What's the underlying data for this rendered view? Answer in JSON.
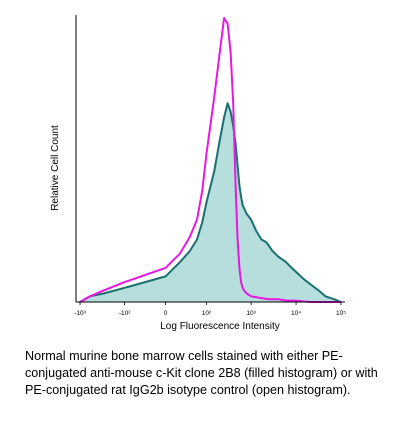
{
  "chart_data": {
    "type": "area",
    "xlabel": "Log Fluorescence Intensity",
    "ylabel": "Relative Cell Count",
    "x_scale": "biexponential",
    "xlim": [
      -1000,
      100000
    ],
    "ylim": [
      0,
      100
    ],
    "x_ticks": [
      {
        "value": -1000,
        "label": "-10³"
      },
      {
        "value": -100,
        "label": "-10²"
      },
      {
        "value": 0,
        "label": "0"
      },
      {
        "value": 100,
        "label": "10²"
      },
      {
        "value": 1000,
        "label": "10³"
      },
      {
        "value": 10000,
        "label": "10⁴"
      },
      {
        "value": 100000,
        "label": "10⁵"
      }
    ],
    "grid": false,
    "series": [
      {
        "style": "filled",
        "fill": "#b5dedc",
        "stroke": "#1a6f6f",
        "x": [
          -1000,
          -600,
          -300,
          -100,
          0,
          20,
          40,
          60,
          80,
          100,
          150,
          200,
          250,
          300,
          350,
          400,
          450,
          500,
          550,
          600,
          650,
          700,
          800,
          900,
          1000,
          1300,
          1700,
          2200,
          3000,
          4000,
          6000,
          8000,
          11000,
          15000,
          22000,
          32000,
          45000,
          70000,
          100000
        ],
        "y": [
          0,
          2,
          3,
          5,
          9,
          14,
          18,
          22,
          28,
          35,
          46,
          57,
          65,
          70,
          67,
          62,
          56,
          48,
          41,
          37,
          34,
          33,
          31,
          30,
          29,
          25,
          22,
          21,
          18,
          16,
          14,
          12,
          10,
          8,
          6,
          4,
          2,
          1,
          0
        ]
      },
      {
        "style": "open",
        "stroke": "#e619e0",
        "x": [
          -1000,
          -600,
          -300,
          -100,
          0,
          20,
          40,
          60,
          80,
          100,
          150,
          200,
          250,
          300,
          350,
          400,
          450,
          500,
          550,
          600,
          650,
          700,
          800,
          900,
          1000,
          1500,
          2500,
          4000,
          6000,
          10000,
          20000,
          50000,
          100000
        ],
        "y": [
          0,
          2,
          4,
          7,
          12,
          17,
          23,
          29,
          39,
          52,
          72,
          88,
          100,
          98,
          88,
          70,
          42,
          22,
          12,
          7,
          5,
          4,
          3,
          2.5,
          2,
          1.5,
          1,
          1,
          0.5,
          0.5,
          0,
          0,
          0
        ]
      }
    ]
  },
  "caption": "Normal murine bone marrow cells stained with either PE-conjugated anti-mouse c-Kit clone 2B8 (filled histogram) or with PE-conjugated rat IgG2b isotype control (open histogram)."
}
